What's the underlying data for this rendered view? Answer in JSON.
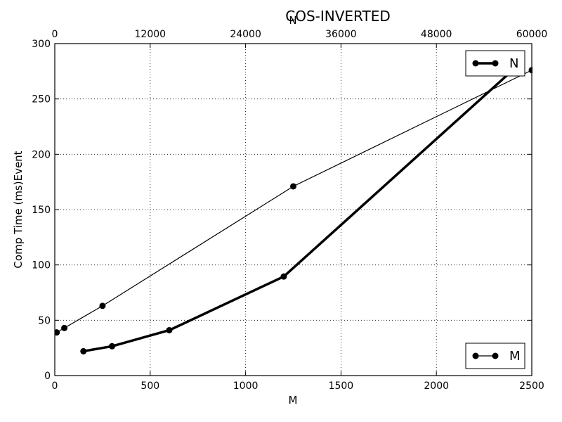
{
  "chart_data": {
    "type": "line",
    "title": "COS-INVERTED",
    "xlabel": "M",
    "x2label": "N",
    "ylabel": "Comp Time (ms)Event",
    "xlim": [
      0,
      2500
    ],
    "x2lim": [
      0,
      60000
    ],
    "ylim": [
      0,
      300
    ],
    "xticks": [
      0,
      500,
      1000,
      1500,
      2000,
      2500
    ],
    "x2ticks": [
      0,
      12000,
      24000,
      36000,
      48000,
      60000
    ],
    "yticks": [
      0,
      50,
      100,
      150,
      200,
      250,
      300
    ],
    "grid": true,
    "series": [
      {
        "name": "M",
        "axis": "bottom",
        "line_width": "thin",
        "color": "#000000",
        "x": [
          10,
          50,
          250,
          1250,
          2500
        ],
        "y": [
          39,
          43,
          63,
          171,
          276
        ]
      },
      {
        "name": "N",
        "axis": "top",
        "line_width": "thick",
        "color": "#000000",
        "x": [
          3600,
          7200,
          14400,
          28800,
          57600
        ],
        "y": [
          22,
          26.5,
          41,
          89.5,
          276
        ]
      }
    ],
    "legends": [
      {
        "series": "N",
        "placement": "upper-right"
      },
      {
        "series": "M",
        "placement": "lower-right"
      }
    ]
  }
}
